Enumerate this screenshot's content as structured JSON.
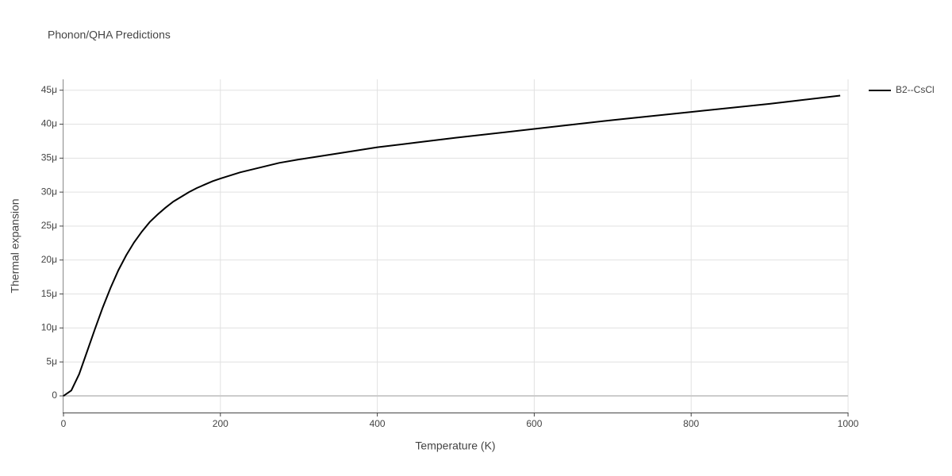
{
  "chart_data": {
    "type": "line",
    "title": "Phonon/QHA Predictions",
    "x_label": "Temperature (K)",
    "y_label": "Thermal expansion",
    "x": [
      0,
      10,
      20,
      30,
      40,
      50,
      60,
      70,
      80,
      90,
      100,
      110,
      120,
      130,
      140,
      150,
      160,
      170,
      180,
      190,
      200,
      225,
      250,
      275,
      300,
      350,
      400,
      450,
      500,
      600,
      700,
      800,
      900,
      990
    ],
    "series": [
      {
        "name": "B2--CsCl",
        "color": "#000000",
        "values": [
          0,
          8e-07,
          3.2e-06,
          6.5e-06,
          9.8e-06,
          1.3e-05,
          1.59e-05,
          1.85e-05,
          2.07e-05,
          2.26e-05,
          2.42e-05,
          2.56e-05,
          2.67e-05,
          2.77e-05,
          2.86e-05,
          2.93e-05,
          3e-05,
          3.06e-05,
          3.11e-05,
          3.16e-05,
          3.2e-05,
          3.29e-05,
          3.36e-05,
          3.43e-05,
          3.48e-05,
          3.57e-05,
          3.66e-05,
          3.73e-05,
          3.8e-05,
          3.93e-05,
          4.06e-05,
          4.18e-05,
          4.3e-05,
          4.42e-05
        ]
      }
    ],
    "xlim": [
      0,
      1000
    ],
    "xticks": [
      0,
      200,
      400,
      600,
      800,
      1000
    ],
    "ylim": [
      -2.45e-06,
      4.66e-05
    ],
    "yticks": [
      0,
      {
        "value": 5e-06,
        "label": "5μ"
      },
      {
        "value": 1e-05,
        "label": "10μ"
      },
      {
        "value": 1.5e-05,
        "label": "15μ"
      },
      {
        "value": 2e-05,
        "label": "20μ"
      },
      {
        "value": 2.5e-05,
        "label": "25μ"
      },
      {
        "value": 3e-05,
        "label": "30μ"
      },
      {
        "value": 3.5e-05,
        "label": "35μ"
      },
      {
        "value": 4e-05,
        "label": "40μ"
      },
      {
        "value": 4.5e-05,
        "label": "45μ"
      }
    ],
    "grid": true,
    "legend": "right"
  }
}
